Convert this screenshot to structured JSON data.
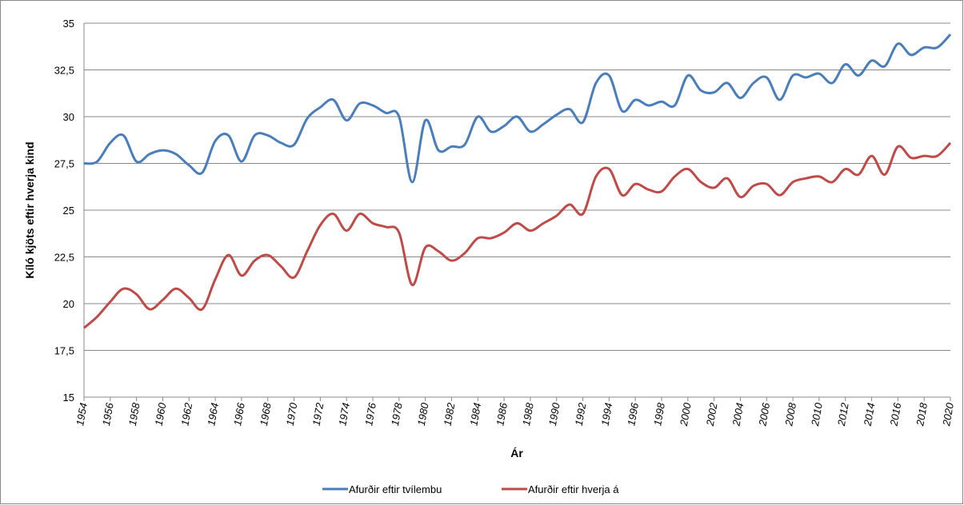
{
  "chart_data": {
    "type": "line",
    "x_label": "Ár",
    "y_label": "Kíló kjöts eftir hverja kind",
    "x": [
      1954,
      1955,
      1956,
      1957,
      1958,
      1959,
      1960,
      1961,
      1962,
      1963,
      1964,
      1965,
      1966,
      1967,
      1968,
      1969,
      1970,
      1971,
      1972,
      1973,
      1974,
      1975,
      1976,
      1977,
      1978,
      1979,
      1980,
      1981,
      1982,
      1983,
      1984,
      1985,
      1986,
      1987,
      1988,
      1989,
      1990,
      1991,
      1992,
      1993,
      1994,
      1995,
      1996,
      1997,
      1998,
      1999,
      2000,
      2001,
      2002,
      2003,
      2004,
      2005,
      2006,
      2007,
      2008,
      2009,
      2010,
      2011,
      2012,
      2013,
      2014,
      2015,
      2016,
      2017,
      2018,
      2019,
      2020
    ],
    "series": [
      {
        "name": "Afurðir eftir tvílembu",
        "color": "#4a7ebb",
        "values": [
          27.5,
          27.6,
          28.6,
          29.0,
          27.6,
          28.0,
          28.2,
          28.0,
          27.4,
          27.0,
          28.7,
          29.0,
          27.6,
          29.0,
          29.0,
          28.6,
          28.5,
          29.9,
          30.5,
          30.9,
          29.8,
          30.7,
          30.6,
          30.2,
          30.0,
          26.5,
          29.8,
          28.2,
          28.4,
          28.5,
          30.0,
          29.2,
          29.5,
          30.0,
          29.2,
          29.6,
          30.1,
          30.4,
          29.7,
          31.8,
          32.2,
          30.3,
          30.9,
          30.6,
          30.8,
          30.6,
          32.2,
          31.4,
          31.3,
          31.8,
          31.0,
          31.8,
          32.1,
          30.9,
          32.2,
          32.1,
          32.3,
          31.8,
          32.8,
          32.2,
          33.0,
          32.7,
          33.9,
          33.3,
          33.7,
          33.7,
          34.4
        ]
      },
      {
        "name": "Afurðir eftir hverja á",
        "color": "#be4b48",
        "values": [
          18.7,
          19.3,
          20.1,
          20.8,
          20.5,
          19.7,
          20.2,
          20.8,
          20.3,
          19.7,
          21.3,
          22.6,
          21.5,
          22.3,
          22.6,
          22.0,
          21.4,
          22.8,
          24.2,
          24.8,
          23.9,
          24.8,
          24.3,
          24.1,
          23.8,
          21.0,
          23.0,
          22.8,
          22.3,
          22.7,
          23.5,
          23.5,
          23.8,
          24.3,
          23.9,
          24.3,
          24.7,
          25.3,
          24.8,
          26.8,
          27.2,
          25.8,
          26.4,
          26.1,
          26.0,
          26.8,
          27.2,
          26.5,
          26.2,
          26.7,
          25.7,
          26.3,
          26.4,
          25.8,
          26.5,
          26.7,
          26.8,
          26.5,
          27.2,
          26.9,
          27.9,
          26.9,
          28.4,
          27.8,
          27.9,
          27.9,
          28.6
        ]
      }
    ],
    "xlim": [
      1954,
      2020
    ],
    "xticks": [
      1954,
      1956,
      1958,
      1960,
      1962,
      1964,
      1966,
      1968,
      1970,
      1972,
      1974,
      1976,
      1978,
      1980,
      1982,
      1984,
      1986,
      1988,
      1990,
      1992,
      1994,
      1996,
      1998,
      2000,
      2002,
      2004,
      2006,
      2008,
      2010,
      2012,
      2014,
      2016,
      2018,
      2020
    ],
    "ylim": [
      15,
      35
    ],
    "yticks": [
      15,
      {
        "value": 17.5,
        "label": "17,5"
      },
      20,
      {
        "value": 22.5,
        "label": "22,5"
      },
      25,
      {
        "value": 27.5,
        "label": "27,5"
      },
      30,
      {
        "value": 32.5,
        "label": "32,5"
      },
      35
    ],
    "grid": true,
    "legend": "bottom"
  }
}
